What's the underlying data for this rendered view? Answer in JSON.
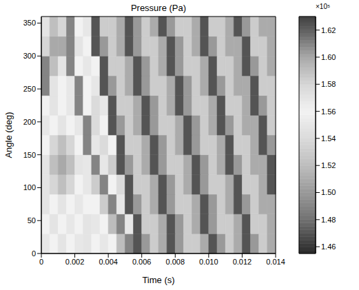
{
  "chart_data": {
    "type": "heatmap",
    "title": "Pressure (Pa)",
    "x_label": "Time (s)",
    "y_label": "Angle (deg)",
    "x": [
      0,
      0.0005,
      0.001,
      0.0015,
      0.002,
      0.0025,
      0.003,
      0.0035,
      0.004,
      0.0045,
      0.005,
      0.0055,
      0.006,
      0.0065,
      0.007,
      0.0075,
      0.008,
      0.0085,
      0.009,
      0.0095,
      0.01,
      0.0105,
      0.011,
      0.0115,
      0.012,
      0.0125,
      0.013,
      0.0135
    ],
    "y": [
      0,
      30,
      60,
      90,
      120,
      150,
      180,
      210,
      240,
      270,
      300,
      330
    ],
    "cells": [
      [
        1.55,
        1.56,
        1.57,
        1.56,
        1.55,
        1.57,
        1.56,
        1.55,
        1.56,
        1.52,
        1.61,
        1.47,
        1.5,
        1.53,
        1.51,
        1.47,
        1.5,
        1.53,
        1.53,
        1.51,
        1.47,
        1.5,
        1.53,
        1.51,
        1.47,
        1.5,
        1.53,
        1.51
      ],
      [
        1.56,
        1.57,
        1.56,
        1.55,
        1.56,
        1.57,
        1.55,
        1.56,
        1.52,
        1.61,
        1.55,
        1.47,
        1.53,
        1.53,
        1.51,
        1.47,
        1.5,
        1.53,
        1.51,
        1.47,
        1.5,
        1.53,
        1.53,
        1.51,
        1.47,
        1.53,
        1.53,
        1.51
      ],
      [
        1.57,
        1.56,
        1.57,
        1.56,
        1.55,
        1.56,
        1.56,
        1.53,
        1.61,
        1.55,
        1.47,
        1.5,
        1.53,
        1.51,
        1.47,
        1.5,
        1.53,
        1.53,
        1.51,
        1.47,
        1.5,
        1.53,
        1.51,
        1.47,
        1.5,
        1.53,
        1.51,
        1.51
      ],
      [
        1.57,
        1.58,
        1.59,
        1.58,
        1.56,
        1.55,
        1.53,
        1.61,
        1.56,
        1.54,
        1.47,
        1.53,
        1.53,
        1.51,
        1.47,
        1.5,
        1.53,
        1.51,
        1.47,
        1.5,
        1.53,
        1.53,
        1.51,
        1.47,
        1.53,
        1.53,
        1.51,
        1.47
      ],
      [
        1.57,
        1.59,
        1.6,
        1.59,
        1.57,
        1.55,
        1.61,
        1.55,
        1.53,
        1.47,
        1.5,
        1.53,
        1.51,
        1.47,
        1.5,
        1.53,
        1.53,
        1.51,
        1.47,
        1.5,
        1.53,
        1.51,
        1.47,
        1.5,
        1.53,
        1.51,
        1.51,
        1.47
      ],
      [
        1.56,
        1.58,
        1.59,
        1.58,
        1.56,
        1.61,
        1.55,
        1.54,
        1.56,
        1.47,
        1.53,
        1.53,
        1.51,
        1.47,
        1.5,
        1.53,
        1.51,
        1.47,
        1.5,
        1.53,
        1.53,
        1.51,
        1.47,
        1.53,
        1.53,
        1.51,
        1.47,
        1.5
      ],
      [
        1.55,
        1.56,
        1.57,
        1.56,
        1.55,
        1.61,
        1.54,
        1.56,
        1.47,
        1.5,
        1.53,
        1.51,
        1.47,
        1.5,
        1.53,
        1.53,
        1.51,
        1.47,
        1.5,
        1.53,
        1.51,
        1.47,
        1.5,
        1.53,
        1.51,
        1.51,
        1.47,
        1.53
      ],
      [
        1.56,
        1.57,
        1.56,
        1.55,
        1.61,
        1.56,
        1.54,
        1.55,
        1.47,
        1.53,
        1.53,
        1.51,
        1.47,
        1.5,
        1.53,
        1.51,
        1.47,
        1.5,
        1.53,
        1.53,
        1.51,
        1.47,
        1.53,
        1.53,
        1.51,
        1.47,
        1.5,
        1.53
      ],
      [
        1.61,
        1.57,
        1.56,
        1.55,
        1.61,
        1.56,
        1.55,
        1.47,
        1.5,
        1.53,
        1.51,
        1.47,
        1.5,
        1.53,
        1.53,
        1.51,
        1.47,
        1.5,
        1.53,
        1.51,
        1.47,
        1.5,
        1.53,
        1.51,
        1.51,
        1.47,
        1.53,
        1.53
      ],
      [
        1.61,
        1.59,
        1.57,
        1.61,
        1.56,
        1.55,
        1.56,
        1.47,
        1.53,
        1.53,
        1.51,
        1.47,
        1.5,
        1.53,
        1.51,
        1.47,
        1.5,
        1.53,
        1.53,
        1.51,
        1.47,
        1.53,
        1.53,
        1.51,
        1.47,
        1.5,
        1.53,
        1.51
      ],
      [
        1.58,
        1.6,
        1.6,
        1.61,
        1.57,
        1.56,
        1.47,
        1.5,
        1.53,
        1.51,
        1.47,
        1.5,
        1.53,
        1.53,
        1.51,
        1.47,
        1.5,
        1.53,
        1.51,
        1.47,
        1.5,
        1.53,
        1.51,
        1.51,
        1.47,
        1.53,
        1.53,
        1.51
      ],
      [
        1.57,
        1.59,
        1.58,
        1.61,
        1.56,
        1.55,
        1.47,
        1.53,
        1.53,
        1.51,
        1.47,
        1.5,
        1.53,
        1.51,
        1.47,
        1.5,
        1.53,
        1.53,
        1.51,
        1.47,
        1.53,
        1.53,
        1.51,
        1.47,
        1.5,
        1.53,
        1.51,
        1.51
      ]
    ],
    "xlim": [
      0,
      0.014
    ],
    "ylim": [
      0,
      360
    ],
    "xticks": [
      0,
      0.002,
      0.004,
      0.006,
      0.008,
      {
        "value": 0.01,
        "label": "0.010"
      },
      0.012,
      0.014
    ],
    "yticks": [
      0,
      50,
      100,
      150,
      200,
      250,
      300,
      350
    ],
    "colorbar": {
      "range": [
        1.455,
        1.63
      ],
      "label": "×10⁵",
      "ticks": [
        1.46,
        1.48,
        {
          "value": 1.5,
          "label": "1.50"
        },
        1.52,
        1.54,
        1.56,
        1.58,
        {
          "value": 1.6,
          "label": "1.60"
        },
        1.62
      ]
    }
  }
}
